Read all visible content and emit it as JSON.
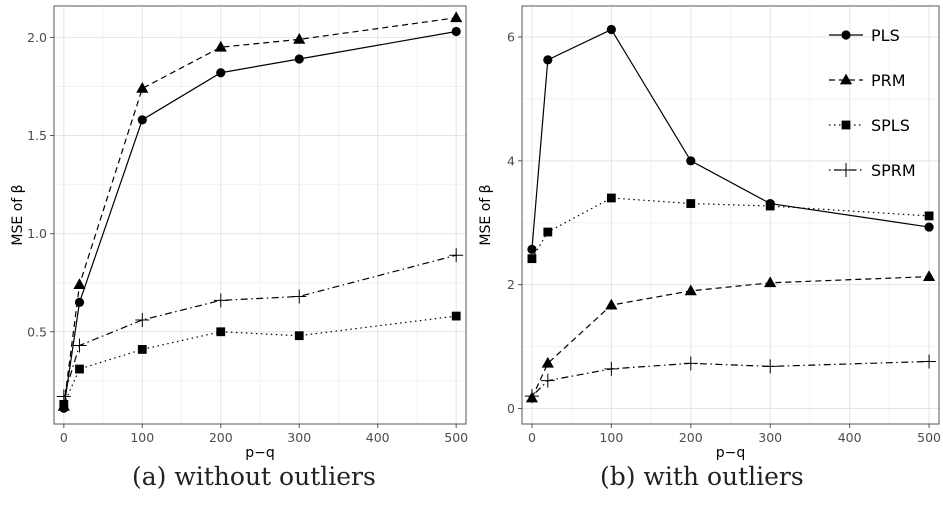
{
  "captions": {
    "a": "(a) without outliers",
    "b": "(b) with outliers"
  },
  "chart_data": [
    {
      "type": "line",
      "title": "",
      "xlabel": "p−q",
      "ylabel": "MSE of β",
      "x": [
        0,
        20,
        100,
        200,
        300,
        500
      ],
      "xlim": [
        -12.5,
        512.5
      ],
      "ylim": [
        0.03,
        2.16
      ],
      "x_ticks": [
        0,
        100,
        200,
        300,
        400,
        500
      ],
      "x_tick_labels": [
        "0",
        "100",
        "200",
        "300",
        "400",
        "500"
      ],
      "y_ticks": [
        0.5,
        1.0,
        1.5,
        2.0
      ],
      "y_tick_labels": [
        "0.5",
        "1.0",
        "1.5",
        "2.0"
      ],
      "grid": true,
      "series": [
        {
          "name": "PLS",
          "marker": "circle",
          "dash": "solid",
          "values": [
            0.11,
            0.65,
            1.58,
            1.82,
            1.89,
            2.03
          ]
        },
        {
          "name": "PRM",
          "marker": "triangle",
          "dash": "dashed",
          "values": [
            0.12,
            0.74,
            1.74,
            1.95,
            1.99,
            2.1
          ]
        },
        {
          "name": "SPLS",
          "marker": "square",
          "dash": "dotted",
          "values": [
            0.13,
            0.31,
            0.41,
            0.5,
            0.48,
            0.58
          ]
        },
        {
          "name": "SPRM",
          "marker": "plus",
          "dash": "dotdash",
          "values": [
            0.17,
            0.43,
            0.56,
            0.66,
            0.68,
            0.89
          ]
        }
      ]
    },
    {
      "type": "line",
      "title": "",
      "xlabel": "p−q",
      "ylabel": "MSE of β",
      "x": [
        0,
        20,
        100,
        200,
        300,
        500
      ],
      "xlim": [
        -12.5,
        512.5
      ],
      "ylim": [
        -0.25,
        6.5
      ],
      "x_ticks": [
        0,
        100,
        200,
        300,
        400,
        500
      ],
      "x_tick_labels": [
        "0",
        "100",
        "200",
        "300",
        "400",
        "500"
      ],
      "y_ticks": [
        0,
        2,
        4,
        6
      ],
      "y_tick_labels": [
        "0",
        "2",
        "4",
        "6"
      ],
      "grid": true,
      "legend": "top-right",
      "series": [
        {
          "name": "PLS",
          "marker": "circle",
          "dash": "solid",
          "values": [
            2.57,
            5.63,
            6.12,
            4.0,
            3.31,
            2.93
          ]
        },
        {
          "name": "PRM",
          "marker": "triangle",
          "dash": "dashed",
          "values": [
            0.17,
            0.73,
            1.67,
            1.9,
            2.03,
            2.13
          ]
        },
        {
          "name": "SPLS",
          "marker": "square",
          "dash": "dotted",
          "values": [
            2.42,
            2.85,
            3.4,
            3.31,
            3.27,
            3.11
          ]
        },
        {
          "name": "SPRM",
          "marker": "plus",
          "dash": "dotdash",
          "values": [
            0.2,
            0.45,
            0.64,
            0.73,
            0.68,
            0.76
          ]
        }
      ]
    }
  ]
}
